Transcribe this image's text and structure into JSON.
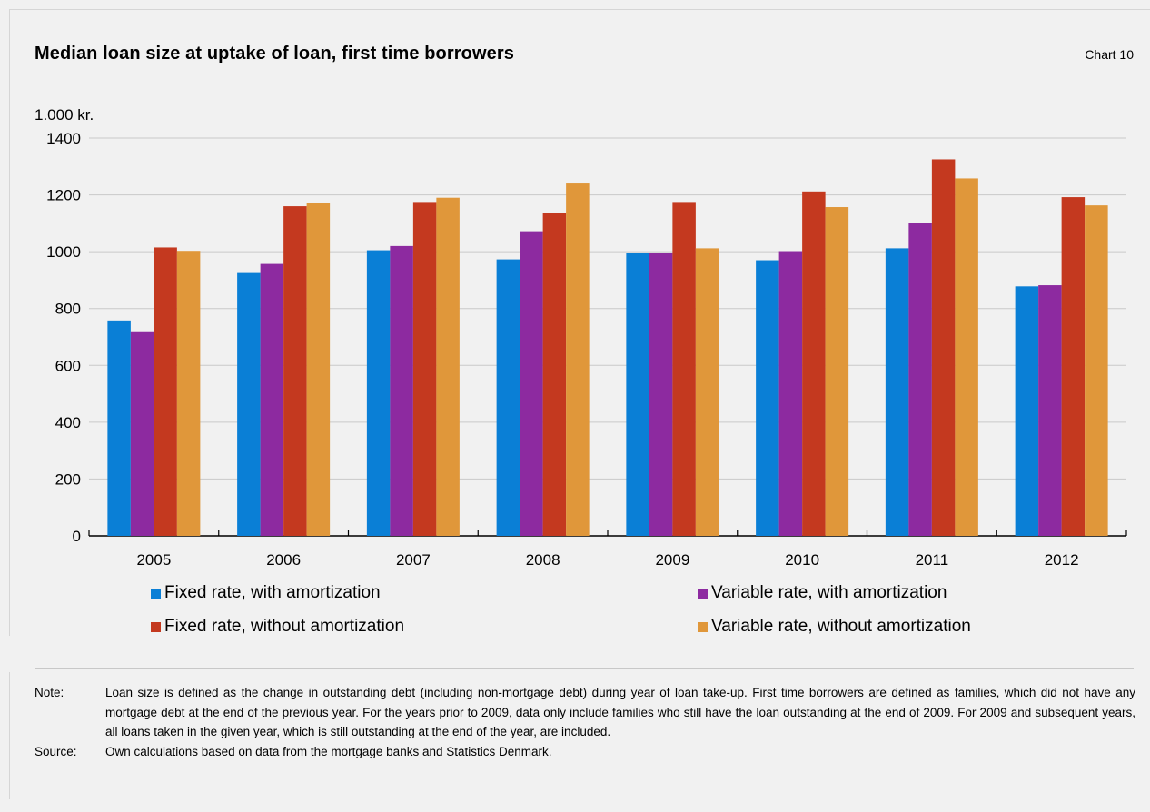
{
  "header": {
    "title": "Median loan size at uptake of loan, first time borrowers",
    "chart_number": "Chart 10"
  },
  "chart_data": {
    "type": "bar",
    "title": "Median loan size at uptake of loan, first time borrowers",
    "ylabel": "1.000 kr.",
    "xlabel": "",
    "ylim": [
      0,
      1400
    ],
    "yticks": [
      0,
      200,
      400,
      600,
      800,
      1000,
      1200,
      1400
    ],
    "grid": true,
    "legend_position": "bottom",
    "categories": [
      "2005",
      "2006",
      "2007",
      "2008",
      "2009",
      "2010",
      "2011",
      "2012"
    ],
    "series": [
      {
        "name": "Fixed rate, with amortization",
        "color": "#0a7fd6",
        "values": [
          758,
          925,
          1005,
          973,
          995,
          970,
          1012,
          878
        ]
      },
      {
        "name": "Variable rate, with amortization",
        "color": "#8d2aa0",
        "values": [
          720,
          957,
          1020,
          1072,
          995,
          1002,
          1102,
          882
        ]
      },
      {
        "name": "Fixed rate, without amortization",
        "color": "#c4391f",
        "values": [
          1015,
          1160,
          1175,
          1135,
          1175,
          1212,
          1325,
          1192
        ]
      },
      {
        "name": "Variable rate, without amortization",
        "color": "#e0973a",
        "values": [
          1003,
          1170,
          1190,
          1240,
          1012,
          1157,
          1258,
          1163
        ]
      }
    ]
  },
  "notes": {
    "note_label": "Note:",
    "note_text": "Loan size is defined as the change in outstanding debt (including non-mortgage debt) during year of loan take-up. First time borrowers are defined as families, which did not have any mortgage debt at the end of the previous year. For the years prior to 2009, data only include families who still have the loan outstanding at the end of 2009. For 2009 and subsequent years, all loans taken in the given year, which is still outstanding at the end of the year, are included.",
    "source_label": "Source:",
    "source_text": "Own calculations based on data from the mortgage banks and Statistics Denmark."
  }
}
